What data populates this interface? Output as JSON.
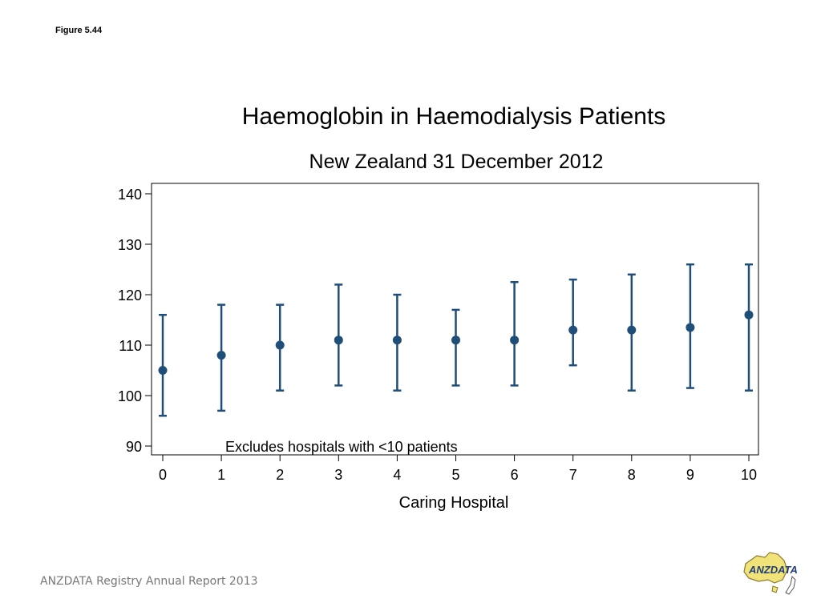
{
  "page": {
    "figure_label": "Figure 5.44",
    "footer": "ANZDATA Registry Annual Report 2013",
    "logo_text": "ANZDATA"
  },
  "colors": {
    "marker": "#1f4e79",
    "axis": "#000000"
  },
  "chart_data": {
    "type": "scatter",
    "title": "Haemoglobin in Haemodialysis Patients",
    "subtitle": "New Zealand 31 December 2012",
    "xlabel": "Caring Hospital",
    "ylabel": "",
    "annotation": "Excludes hospitals with <10 patients",
    "xlim": [
      0,
      10
    ],
    "ylim": [
      90,
      140
    ],
    "x_ticks": [
      0,
      1,
      2,
      3,
      4,
      5,
      6,
      7,
      8,
      9,
      10
    ],
    "y_ticks": [
      90,
      100,
      110,
      120,
      130,
      140
    ],
    "grid": false,
    "points": [
      {
        "x": 0,
        "y": 105,
        "low": 96,
        "high": 116
      },
      {
        "x": 1,
        "y": 108,
        "low": 97,
        "high": 118
      },
      {
        "x": 2,
        "y": 110,
        "low": 101,
        "high": 118
      },
      {
        "x": 3,
        "y": 111,
        "low": 102,
        "high": 122
      },
      {
        "x": 4,
        "y": 111,
        "low": 101,
        "high": 120
      },
      {
        "x": 5,
        "y": 111,
        "low": 102,
        "high": 117
      },
      {
        "x": 6,
        "y": 111,
        "low": 102,
        "high": 122.5
      },
      {
        "x": 7,
        "y": 113,
        "low": 106,
        "high": 123
      },
      {
        "x": 8,
        "y": 113,
        "low": 101,
        "high": 124
      },
      {
        "x": 9,
        "y": 113.5,
        "low": 101.5,
        "high": 126
      },
      {
        "x": 10,
        "y": 116,
        "low": 101,
        "high": 126
      }
    ]
  }
}
